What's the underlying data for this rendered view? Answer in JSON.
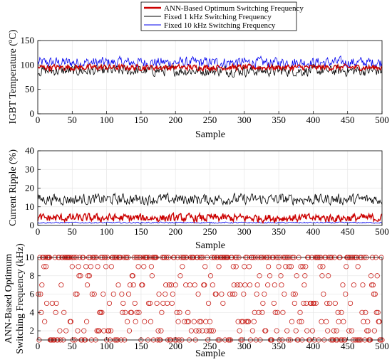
{
  "chart_data": [
    {
      "type": "line",
      "ylabel_main": "IGBT Temperature (",
      "ylabel_sup": "o",
      "ylabel_unit": "C)",
      "xlabel": "Sample",
      "xlim": [
        0,
        500
      ],
      "ylim": [
        0,
        150
      ],
      "xticks": [
        "0",
        "50",
        "100",
        "150",
        "200",
        "250",
        "300",
        "350",
        "400",
        "450",
        "500"
      ],
      "yticks": [
        "0",
        "50",
        "100",
        "150"
      ],
      "grid": true,
      "legend_position": "top-center",
      "series": [
        {
          "name": "ANN-Based Optimum Switching Frequency",
          "color": "#cc0000",
          "mean": 95,
          "amplitude": 8
        },
        {
          "name": "Fixed 1 kHz Switching Frequency",
          "color": "#000000",
          "mean": 88,
          "amplitude": 15
        },
        {
          "name": "Fixed 10 kHz Switching Frequency",
          "color": "#0000ee",
          "mean": 105,
          "amplitude": 15
        }
      ]
    },
    {
      "type": "line",
      "ylabel": "Current Ripple (%)",
      "xlabel": "Sample",
      "xlim": [
        0,
        500
      ],
      "ylim": [
        0,
        40
      ],
      "xticks": [
        "0",
        "50",
        "100",
        "150",
        "200",
        "250",
        "300",
        "350",
        "400",
        "450",
        "500"
      ],
      "yticks": [
        "0",
        "10",
        "20",
        "30",
        "40"
      ],
      "grid": true,
      "series": [
        {
          "color": "#000000",
          "mean": 14,
          "amplitude": 4
        },
        {
          "color": "#cc0000",
          "mean": 4,
          "amplitude": 3
        },
        {
          "color": "#0000ee",
          "mean": 1.5,
          "amplitude": 0.5
        }
      ]
    },
    {
      "type": "scatter",
      "ylabel_line1": "ANN-Based Optimum",
      "ylabel_line2": "Switching Frequency (kHz)",
      "xlabel": "Sample",
      "xlim": [
        0,
        500
      ],
      "ylim": [
        1,
        10
      ],
      "xticks": [
        "0",
        "50",
        "100",
        "150",
        "200",
        "250",
        "300",
        "350",
        "400",
        "450",
        "500"
      ],
      "yticks": [
        "2",
        "4",
        "6",
        "8",
        "10"
      ],
      "grid": true,
      "marker": "circle",
      "marker_color": "#c8201a",
      "levels": [
        1,
        2,
        3,
        4,
        5,
        6,
        7,
        8,
        9,
        10
      ]
    }
  ],
  "legend": {
    "entries": [
      "ANN-Based Optimum Switching Frequency",
      "Fixed 1 kHz Switching Frequency",
      "Fixed 10 kHz Switching Frequency"
    ]
  }
}
